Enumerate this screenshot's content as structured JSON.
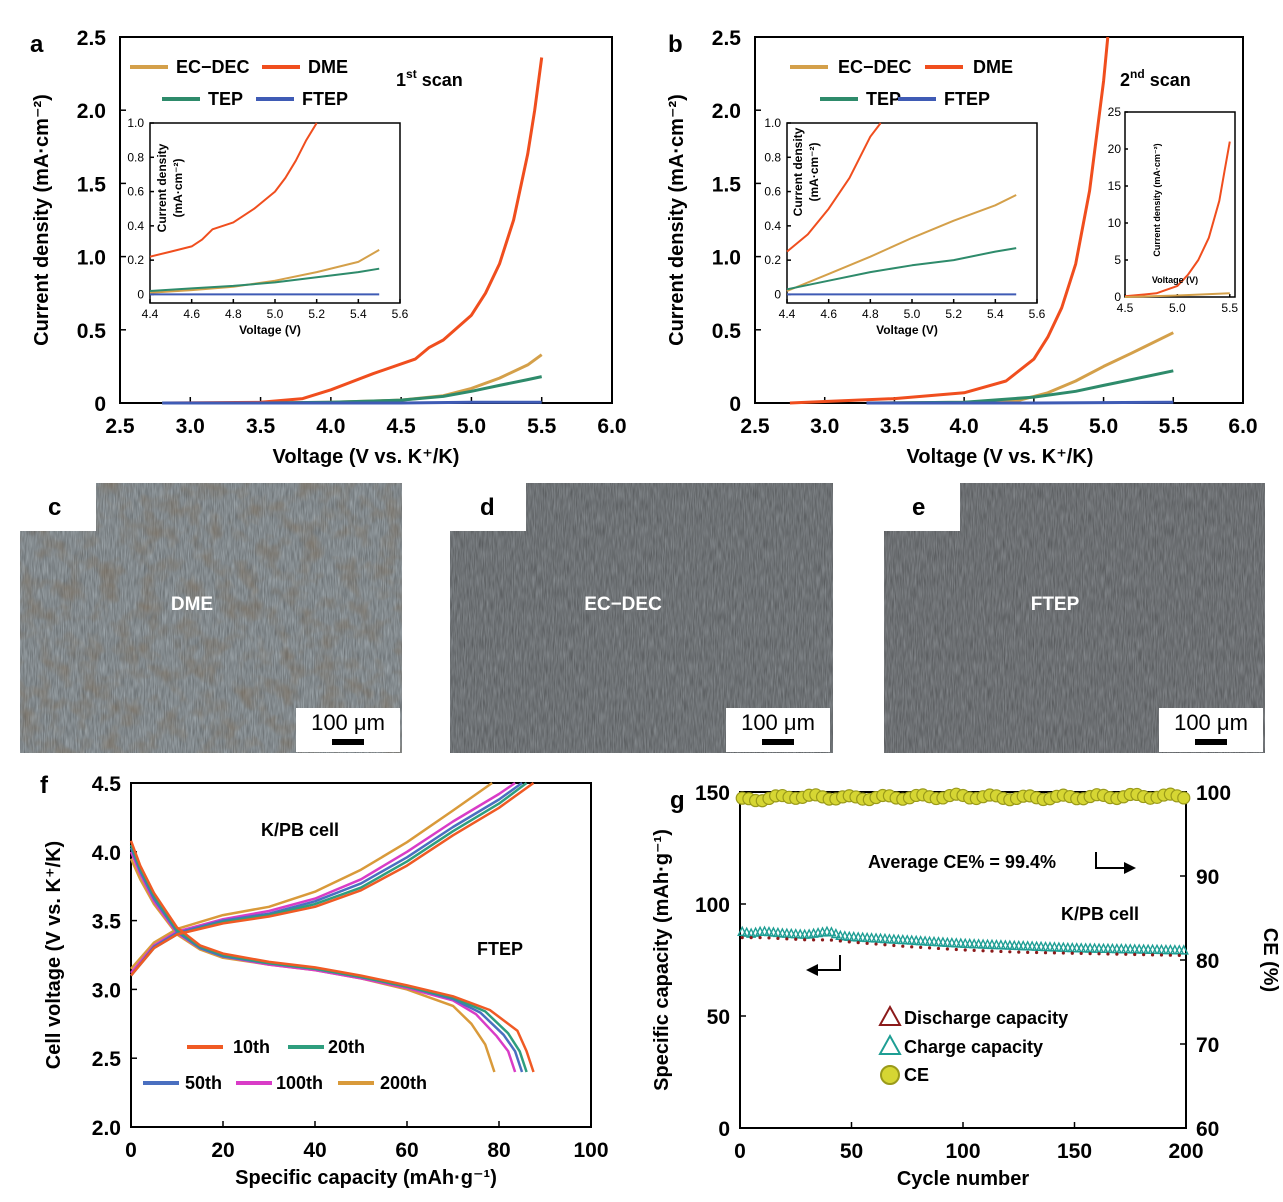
{
  "colors": {
    "ecdec": "#D4A04A",
    "dme": "#F04E1E",
    "tep": "#2E8B6B",
    "ftep": "#3F5BB5",
    "c10": "#F05A24",
    "c20": "#2E9E7E",
    "c50": "#4A6FC0",
    "c100": "#D93CC7",
    "c200": "#D99A3A",
    "discharge": "#8B1A1A",
    "charge": "#1E9E94",
    "ce_fill": "#D6D633",
    "ce_edge": "#9A9A1A",
    "ce_text": "#9C9C1E"
  },
  "panels": {
    "a": {
      "letter": "a",
      "scan": "1",
      "scan_sup": "st",
      "scan_suffix": " scan",
      "inset_ylabel1": "Current density",
      "inset_ylabel2": "(mA·cm⁻²)",
      "inset_xlabel": "Voltage (V)"
    },
    "b": {
      "letter": "b",
      "scan": "2",
      "scan_sup": "nd",
      "scan_suffix": " scan",
      "inset_ylabel1": "Current density",
      "inset_ylabel2": "(mA·cm⁻²)",
      "inset_xlabel": "Voltage (V)",
      "inset2_ylabel": "Current density (mA·cm⁻²)",
      "inset2_xlabel": "Voltage (V)"
    },
    "c": {
      "letter": "c",
      "label": "DME",
      "scale": "100 μm"
    },
    "d": {
      "letter": "d",
      "label": "EC−DEC",
      "scale": "100 μm"
    },
    "e": {
      "letter": "e",
      "label": "FTEP",
      "scale": "100 μm"
    },
    "f": {
      "letter": "f",
      "title": "K/PB cell",
      "electrolyte": "FTEP"
    },
    "g": {
      "letter": "g",
      "title": "K/PB cell",
      "avg_ce": "Average CE% = 99.4%"
    }
  },
  "chart_data": [
    {
      "panel": "a",
      "type": "line",
      "xlabel": "Voltage (V vs. K⁺/K)",
      "ylabel": "Current density (mA·cm⁻²)",
      "xlim": [
        2.5,
        6.0
      ],
      "ylim": [
        0,
        2.5
      ],
      "xticks": [
        "2.5",
        "3.0",
        "3.5",
        "4.0",
        "4.5",
        "5.0",
        "5.5",
        "6.0"
      ],
      "yticks": [
        "0",
        "0.5",
        "1.0",
        "1.5",
        "2.0",
        "2.5"
      ],
      "legend": [
        "EC−DEC",
        "DME",
        "TEP",
        "FTEP"
      ],
      "series": [
        {
          "name": "EC−DEC",
          "x": [
            2.8,
            3.5,
            4.0,
            4.5,
            4.8,
            5.0,
            5.2,
            5.4,
            5.5
          ],
          "y": [
            0,
            0,
            0.005,
            0.02,
            0.05,
            0.1,
            0.17,
            0.26,
            0.33
          ]
        },
        {
          "name": "DME",
          "x": [
            2.8,
            3.5,
            3.8,
            4.0,
            4.3,
            4.6,
            4.7,
            4.8,
            5.0,
            5.1,
            5.2,
            5.3,
            5.4,
            5.45,
            5.5
          ],
          "y": [
            0,
            0.005,
            0.03,
            0.09,
            0.2,
            0.3,
            0.38,
            0.43,
            0.6,
            0.75,
            0.95,
            1.25,
            1.7,
            2.0,
            2.36
          ]
        },
        {
          "name": "TEP",
          "x": [
            2.8,
            3.5,
            4.0,
            4.5,
            4.8,
            5.0,
            5.2,
            5.4,
            5.5
          ],
          "y": [
            0,
            0,
            0.005,
            0.02,
            0.045,
            0.08,
            0.12,
            0.16,
            0.18
          ]
        },
        {
          "name": "FTEP",
          "x": [
            2.8,
            3.5,
            4.0,
            4.5,
            5.0,
            5.5
          ],
          "y": [
            0,
            0,
            0,
            0,
            0.005,
            0.005
          ]
        }
      ],
      "inset": {
        "xlabel": "Voltage (V)",
        "ylabel": "Current density (mA·cm⁻²)",
        "xlim": [
          4.4,
          5.6
        ],
        "ylim": [
          -0.05,
          1.0
        ],
        "xticks": [
          "4.4",
          "4.6",
          "4.8",
          "5.0",
          "5.2",
          "5.4",
          "5.6"
        ],
        "yticks": [
          "0",
          "0.2",
          "0.4",
          "0.6",
          "0.8",
          "1.0"
        ],
        "series": [
          {
            "name": "DME",
            "x": [
              4.4,
              4.5,
              4.6,
              4.65,
              4.7,
              4.8,
              4.9,
              5.0,
              5.05,
              5.1,
              5.15,
              5.2
            ],
            "y": [
              0.22,
              0.25,
              0.28,
              0.32,
              0.38,
              0.42,
              0.5,
              0.6,
              0.68,
              0.78,
              0.9,
              1.0
            ]
          },
          {
            "name": "EC−DEC",
            "x": [
              4.4,
              4.6,
              4.8,
              5.0,
              5.2,
              5.4,
              5.5
            ],
            "y": [
              0.01,
              0.025,
              0.045,
              0.08,
              0.13,
              0.19,
              0.26
            ]
          },
          {
            "name": "TEP",
            "x": [
              4.4,
              4.6,
              4.8,
              5.0,
              5.2,
              5.4,
              5.5
            ],
            "y": [
              0.02,
              0.035,
              0.05,
              0.07,
              0.1,
              0.13,
              0.15
            ]
          },
          {
            "name": "FTEP",
            "x": [
              4.4,
              5.5
            ],
            "y": [
              0,
              0
            ]
          }
        ]
      }
    },
    {
      "panel": "b",
      "type": "line",
      "xlabel": "Voltage (V vs. K⁺/K)",
      "ylabel": "Current density (mA·cm⁻²)",
      "xlim": [
        2.5,
        6.0
      ],
      "ylim": [
        0,
        2.5
      ],
      "xticks": [
        "2.5",
        "3.0",
        "3.5",
        "4.0",
        "4.5",
        "5.0",
        "5.5",
        "6.0"
      ],
      "yticks": [
        "0",
        "0.5",
        "1.0",
        "1.5",
        "2.0",
        "2.5"
      ],
      "legend": [
        "EC−DEC",
        "DME",
        "TEP",
        "FTEP"
      ],
      "series": [
        {
          "name": "EC−DEC",
          "x": [
            3.3,
            4.0,
            4.4,
            4.6,
            4.8,
            5.0,
            5.2,
            5.5
          ],
          "y": [
            0,
            0.005,
            0.02,
            0.07,
            0.15,
            0.25,
            0.34,
            0.48
          ]
        },
        {
          "name": "DME",
          "x": [
            2.75,
            3.0,
            3.5,
            4.0,
            4.3,
            4.5,
            4.6,
            4.7,
            4.8,
            4.9,
            5.0,
            5.03
          ],
          "y": [
            0,
            0.01,
            0.03,
            0.07,
            0.15,
            0.3,
            0.45,
            0.65,
            0.95,
            1.45,
            2.2,
            2.5
          ]
        },
        {
          "name": "TEP",
          "x": [
            3.3,
            4.0,
            4.5,
            4.8,
            5.0,
            5.2,
            5.5
          ],
          "y": [
            0,
            0.005,
            0.04,
            0.08,
            0.12,
            0.16,
            0.22
          ]
        },
        {
          "name": "FTEP",
          "x": [
            3.3,
            4.0,
            4.5,
            5.0,
            5.5
          ],
          "y": [
            0,
            0,
            0,
            0.003,
            0.005
          ]
        }
      ],
      "inset": {
        "xlabel": "Voltage (V)",
        "ylabel": "Current density (mA·cm⁻²)",
        "xlim": [
          4.4,
          5.6
        ],
        "ylim": [
          -0.05,
          1.0
        ],
        "xticks": [
          "4.4",
          "4.6",
          "4.8",
          "5.0",
          "5.2",
          "5.4",
          "5.6"
        ],
        "yticks": [
          "0",
          "0.2",
          "0.4",
          "0.6",
          "0.8",
          "1.0"
        ],
        "series": [
          {
            "name": "DME",
            "x": [
              4.4,
              4.5,
              4.6,
              4.7,
              4.75,
              4.8,
              4.85
            ],
            "y": [
              0.25,
              0.35,
              0.5,
              0.68,
              0.8,
              0.92,
              1.0
            ]
          },
          {
            "name": "EC−DEC",
            "x": [
              4.4,
              4.6,
              4.8,
              5.0,
              5.2,
              5.4,
              5.5
            ],
            "y": [
              0.02,
              0.12,
              0.22,
              0.33,
              0.43,
              0.52,
              0.58
            ]
          },
          {
            "name": "TEP",
            "x": [
              4.4,
              4.6,
              4.8,
              5.0,
              5.2,
              5.4,
              5.5
            ],
            "y": [
              0.03,
              0.08,
              0.13,
              0.17,
              0.2,
              0.25,
              0.27
            ]
          },
          {
            "name": "FTEP",
            "x": [
              4.4,
              5.5
            ],
            "y": [
              0,
              0
            ]
          }
        ]
      },
      "inset2": {
        "xlabel": "Voltage (V)",
        "ylabel": "Current density (mA·cm⁻²)",
        "xlim": [
          4.5,
          5.55
        ],
        "ylim": [
          0,
          25
        ],
        "xticks": [
          "4.5",
          "5.0",
          "5.5"
        ],
        "yticks": [
          "0",
          "5",
          "10",
          "15",
          "20",
          "25"
        ],
        "series": [
          {
            "name": "DME",
            "x": [
              4.5,
              4.8,
              5.0,
              5.1,
              5.2,
              5.3,
              5.4,
              5.45,
              5.5
            ],
            "y": [
              0.1,
              0.5,
              1.5,
              3,
              5,
              8,
              13,
              17,
              21
            ]
          },
          {
            "name": "EC−DEC",
            "x": [
              4.5,
              5.0,
              5.5
            ],
            "y": [
              0,
              0.2,
              0.5
            ]
          }
        ]
      }
    },
    {
      "panel": "f",
      "type": "line",
      "xlabel": "Specific capacity (mAh·g⁻¹)",
      "ylabel": "Cell voltage (V vs. K⁺/K)",
      "xlim": [
        0,
        100
      ],
      "ylim": [
        2.0,
        4.5
      ],
      "xticks": [
        "0",
        "20",
        "40",
        "60",
        "80",
        "100"
      ],
      "yticks": [
        "2.0",
        "2.5",
        "3.0",
        "3.5",
        "4.0",
        "4.5"
      ],
      "legend": [
        "10th",
        "20th",
        "50th",
        "100th",
        "200th"
      ],
      "series": [
        {
          "name": "10th",
          "charge_x": [
            0,
            5,
            10,
            20,
            30,
            40,
            50,
            60,
            70,
            80,
            87.5
          ],
          "charge_y": [
            3.1,
            3.3,
            3.4,
            3.48,
            3.53,
            3.6,
            3.72,
            3.9,
            4.12,
            4.32,
            4.5
          ],
          "discharge_x": [
            0,
            2,
            5,
            10,
            15,
            20,
            30,
            40,
            50,
            60,
            70,
            78,
            84,
            86,
            87.5
          ],
          "discharge_y": [
            4.08,
            3.9,
            3.7,
            3.45,
            3.32,
            3.26,
            3.2,
            3.16,
            3.1,
            3.03,
            2.95,
            2.85,
            2.7,
            2.55,
            2.4
          ]
        },
        {
          "name": "20th",
          "charge_x": [
            0,
            5,
            10,
            20,
            30,
            40,
            50,
            60,
            70,
            80,
            86
          ],
          "charge_y": [
            3.1,
            3.3,
            3.4,
            3.49,
            3.54,
            3.62,
            3.74,
            3.93,
            4.15,
            4.35,
            4.5
          ],
          "discharge_x": [
            0,
            2,
            5,
            10,
            15,
            20,
            30,
            40,
            50,
            60,
            70,
            77,
            82,
            84.5,
            86
          ],
          "discharge_y": [
            4.05,
            3.88,
            3.68,
            3.43,
            3.31,
            3.25,
            3.19,
            3.15,
            3.09,
            3.02,
            2.94,
            2.84,
            2.68,
            2.55,
            2.4
          ]
        },
        {
          "name": "50th",
          "charge_x": [
            0,
            5,
            10,
            20,
            30,
            40,
            50,
            60,
            70,
            80,
            85
          ],
          "charge_y": [
            3.1,
            3.31,
            3.41,
            3.5,
            3.55,
            3.64,
            3.77,
            3.96,
            4.18,
            4.38,
            4.5
          ],
          "discharge_x": [
            0,
            2,
            5,
            10,
            15,
            20,
            30,
            40,
            50,
            60,
            70,
            76,
            81,
            83.5,
            85
          ],
          "discharge_y": [
            4.03,
            3.86,
            3.66,
            3.42,
            3.3,
            3.24,
            3.19,
            3.15,
            3.09,
            3.02,
            2.93,
            2.83,
            2.67,
            2.55,
            2.4
          ]
        },
        {
          "name": "100th",
          "charge_x": [
            0,
            5,
            10,
            20,
            30,
            40,
            50,
            60,
            70,
            80,
            83.5
          ],
          "charge_y": [
            3.12,
            3.32,
            3.42,
            3.51,
            3.57,
            3.66,
            3.8,
            4.0,
            4.22,
            4.42,
            4.5
          ],
          "discharge_x": [
            0,
            2,
            5,
            10,
            15,
            20,
            30,
            40,
            50,
            60,
            70,
            75,
            79.5,
            82,
            83.5
          ],
          "discharge_y": [
            4.0,
            3.84,
            3.64,
            3.41,
            3.3,
            3.24,
            3.18,
            3.14,
            3.08,
            3.01,
            2.92,
            2.82,
            2.66,
            2.55,
            2.4
          ]
        },
        {
          "name": "200th",
          "charge_x": [
            0,
            5,
            10,
            20,
            30,
            40,
            50,
            60,
            70,
            78.5
          ],
          "charge_y": [
            3.15,
            3.34,
            3.44,
            3.54,
            3.6,
            3.71,
            3.87,
            4.07,
            4.3,
            4.5
          ],
          "discharge_x": [
            0,
            2,
            5,
            10,
            15,
            20,
            30,
            40,
            50,
            60,
            70,
            74,
            77,
            79
          ],
          "discharge_y": [
            3.95,
            3.8,
            3.62,
            3.4,
            3.29,
            3.23,
            3.18,
            3.14,
            3.08,
            3.0,
            2.88,
            2.75,
            2.6,
            2.4
          ]
        }
      ]
    },
    {
      "panel": "g",
      "type": "scatter",
      "xlabel": "Cycle number",
      "ylabel": "Specific capacity (mAh·g⁻¹)",
      "y2label": "CE (%)",
      "xlim": [
        0,
        200
      ],
      "ylim": [
        0,
        150
      ],
      "y2lim": [
        60,
        100
      ],
      "xticks": [
        "0",
        "50",
        "100",
        "150",
        "200"
      ],
      "yticks": [
        "0",
        "50",
        "100",
        "150"
      ],
      "y2ticks": [
        "60",
        "70",
        "80",
        "90",
        "100"
      ],
      "legend": [
        "Discharge capacity",
        "Charge capacity",
        "CE"
      ],
      "series": [
        {
          "name": "Discharge capacity",
          "x": [
            0,
            10,
            20,
            30,
            40,
            50,
            75,
            100,
            125,
            150,
            175,
            200
          ],
          "y": [
            85,
            85,
            84.5,
            84,
            84,
            83,
            81,
            79.5,
            78.5,
            78,
            77.5,
            77
          ]
        },
        {
          "name": "Charge capacity",
          "x": [
            0,
            5,
            10,
            20,
            30,
            40,
            45,
            50,
            75,
            100,
            125,
            150,
            175,
            200
          ],
          "y": [
            88,
            87,
            88,
            87,
            86.5,
            88,
            86,
            85.5,
            84,
            82.5,
            81.5,
            80.5,
            80,
            79.5
          ]
        },
        {
          "name": "CE",
          "x": [
            0,
            25,
            50,
            75,
            100,
            125,
            150,
            175,
            200
          ],
          "y": [
            99.0,
            99.5,
            99.3,
            99.4,
            99.5,
            99.3,
            99.4,
            99.5,
            99.5
          ]
        }
      ]
    }
  ]
}
